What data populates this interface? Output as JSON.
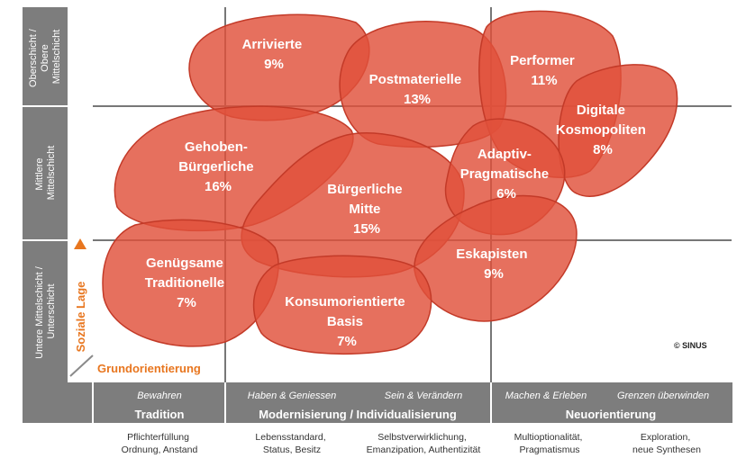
{
  "colors": {
    "milieu_fill": "#e0503a",
    "milieu_stroke": "#c33a28",
    "band_gray": "#7d7d7d",
    "grid_line": "#777777",
    "axis_accent": "#e8761f"
  },
  "y_axis": {
    "label": "Soziale Lage",
    "levels": [
      {
        "line1": "Oberschicht /",
        "line2": "Obere",
        "line3": "Mittelschicht"
      },
      {
        "line1": "Mittlere",
        "line2": "Mittelschicht"
      },
      {
        "line1": "Untere Mittelschicht /",
        "line2": "Unterschicht"
      }
    ]
  },
  "x_axis": {
    "label": "Grundorientierung",
    "groups": [
      {
        "category": "Tradition",
        "subs": [
          "Bewahren"
        ],
        "descs": [
          [
            "Pflichterfüllung",
            "Ordnung, Anstand"
          ]
        ]
      },
      {
        "category": "Modernisierung / Individualisierung",
        "subs": [
          "Haben & Geniessen",
          "Sein & Verändern"
        ],
        "descs": [
          [
            "Lebensstandard,",
            "Status, Besitz"
          ],
          [
            "Selbstverwirklichung,",
            "Emanzipation, Authentizität"
          ]
        ]
      },
      {
        "category": "Neuorientierung",
        "subs": [
          "Machen & Erleben",
          "Grenzen überwinden"
        ],
        "descs": [
          [
            "Multioptionalität,",
            "Pragmatismus"
          ],
          [
            "Exploration,",
            "neue Synthesen"
          ]
        ]
      }
    ]
  },
  "milieus": [
    {
      "name": [
        "Arrivierte"
      ],
      "share": "9%"
    },
    {
      "name": [
        "Postmaterielle"
      ],
      "share": "13%"
    },
    {
      "name": [
        "Performer"
      ],
      "share": "11%"
    },
    {
      "name": [
        "Digitale",
        "Kosmopoliten"
      ],
      "share": "8%"
    },
    {
      "name": [
        "Gehoben-",
        "Bürgerliche"
      ],
      "share": "16%"
    },
    {
      "name": [
        "Bürgerliche",
        "Mitte"
      ],
      "share": "15%"
    },
    {
      "name": [
        "Adaptiv-",
        "Pragmatische"
      ],
      "share": "6%"
    },
    {
      "name": [
        "Genügsame",
        "Traditionelle"
      ],
      "share": "7%"
    },
    {
      "name": [
        "Eskapisten"
      ],
      "share": "9%"
    },
    {
      "name": [
        "Konsumorientierte",
        "Basis"
      ],
      "share": "7%"
    }
  ],
  "copyright": "© SINUS"
}
